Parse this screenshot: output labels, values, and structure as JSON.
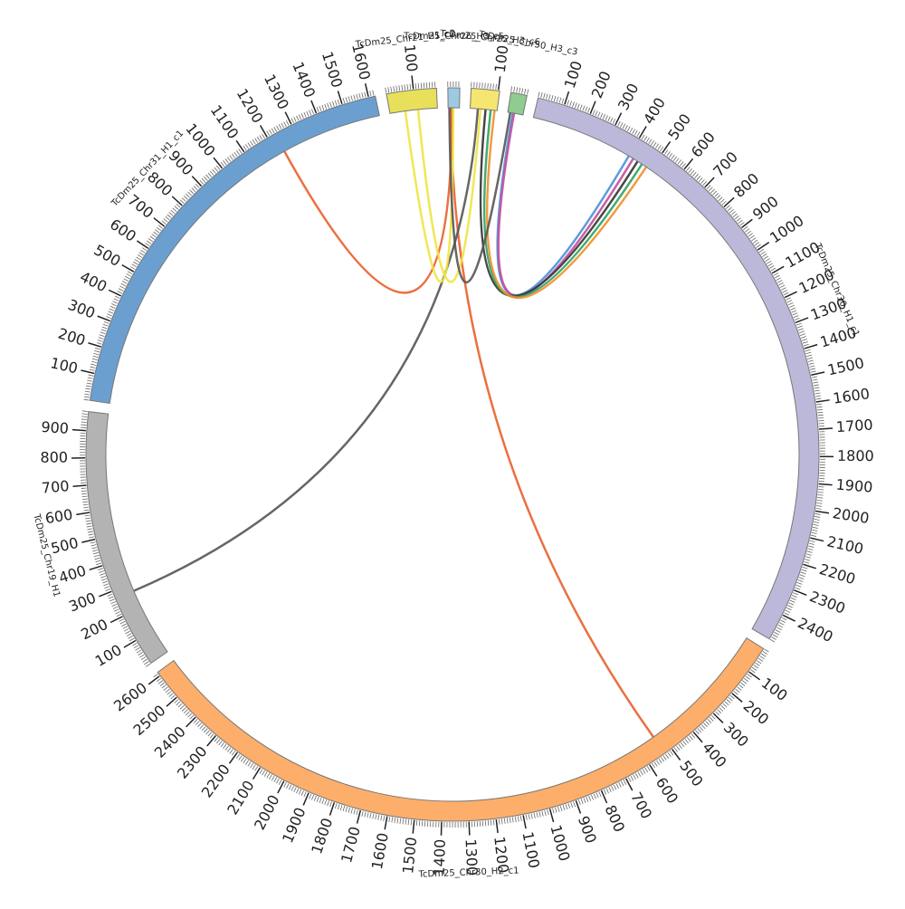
{
  "chart_data": {
    "type": "circos",
    "segments": [
      {
        "name": "TcDm25_Chr30_H1_c1",
        "length": 2500,
        "color": "#bcb8da",
        "ticks": [
          100,
          200,
          300,
          400,
          500,
          600,
          700,
          800,
          900,
          1000,
          1100,
          1200,
          1300,
          1400,
          1500,
          1600,
          1700,
          1800,
          1900,
          2000,
          2100,
          2200,
          2300,
          2400
        ]
      },
      {
        "name": "TcDm25_Chr30_H2_c1",
        "length": 2615,
        "color": "#fdae6b",
        "ticks": [
          100,
          200,
          300,
          400,
          500,
          600,
          700,
          800,
          900,
          1000,
          1100,
          1200,
          1300,
          1400,
          1500,
          1600,
          1700,
          1800,
          1900,
          2000,
          2100,
          2200,
          2300,
          2400,
          2500,
          2600
        ]
      },
      {
        "name": "TcDm25_Chr19_H1",
        "length": 970,
        "color": "#b3b3b3",
        "ticks": [
          100,
          200,
          300,
          400,
          500,
          600,
          700,
          800,
          900
        ]
      },
      {
        "name": "TcDm25_Chr31_H1_c1",
        "length": 1625,
        "color": "#6b9fd0",
        "ticks": [
          100,
          200,
          300,
          400,
          500,
          600,
          700,
          800,
          900,
          1000,
          1100,
          1200,
          1300,
          1400,
          1500,
          1600
        ]
      },
      {
        "name": "TcDm25_Chr21_H1_c2",
        "length": 185,
        "color": "#e8e05a",
        "ticks": [
          100
        ]
      },
      {
        "name": "TcDm25_Chr26_H3_c5",
        "length": 44,
        "color": "#9ecae1",
        "ticks": []
      },
      {
        "name": "TcDm25_Chr25_H3_c6",
        "length": 105,
        "color": "#f5e66f",
        "ticks": [
          100
        ]
      },
      {
        "name": "TcDm25_Chr50_H3_c3",
        "length": 60,
        "color": "#8fcc8f",
        "ticks": []
      }
    ],
    "minor_tick_interval": 10,
    "links": [
      {
        "from": [
          3,
          1230
        ],
        "to": [
          5,
          15
        ],
        "color": "#e8602c"
      },
      {
        "from": [
          5,
          10
        ],
        "to": [
          1,
          530
        ],
        "color": "#e8602c"
      },
      {
        "from": [
          2,
          270
        ],
        "to": [
          6,
          30
        ],
        "color": "#555555"
      },
      {
        "from": [
          0,
          400
        ],
        "to": [
          7,
          20
        ],
        "color": "#4a90d9"
      },
      {
        "from": [
          0,
          420
        ],
        "to": [
          7,
          25
        ],
        "color": "#c44e9c"
      },
      {
        "from": [
          0,
          440
        ],
        "to": [
          6,
          60
        ],
        "color": "#333333"
      },
      {
        "from": [
          0,
          460
        ],
        "to": [
          6,
          80
        ],
        "color": "#2ca25f"
      },
      {
        "from": [
          0,
          480
        ],
        "to": [
          6,
          95
        ],
        "color": "#f28e2b"
      },
      {
        "from": [
          4,
          60
        ],
        "to": [
          5,
          20
        ],
        "color": "#f0e442"
      },
      {
        "from": [
          4,
          110
        ],
        "to": [
          6,
          40
        ],
        "color": "#f0e442"
      },
      {
        "from": [
          7,
          10
        ],
        "to": [
          5,
          5
        ],
        "color": "#555555"
      }
    ]
  }
}
